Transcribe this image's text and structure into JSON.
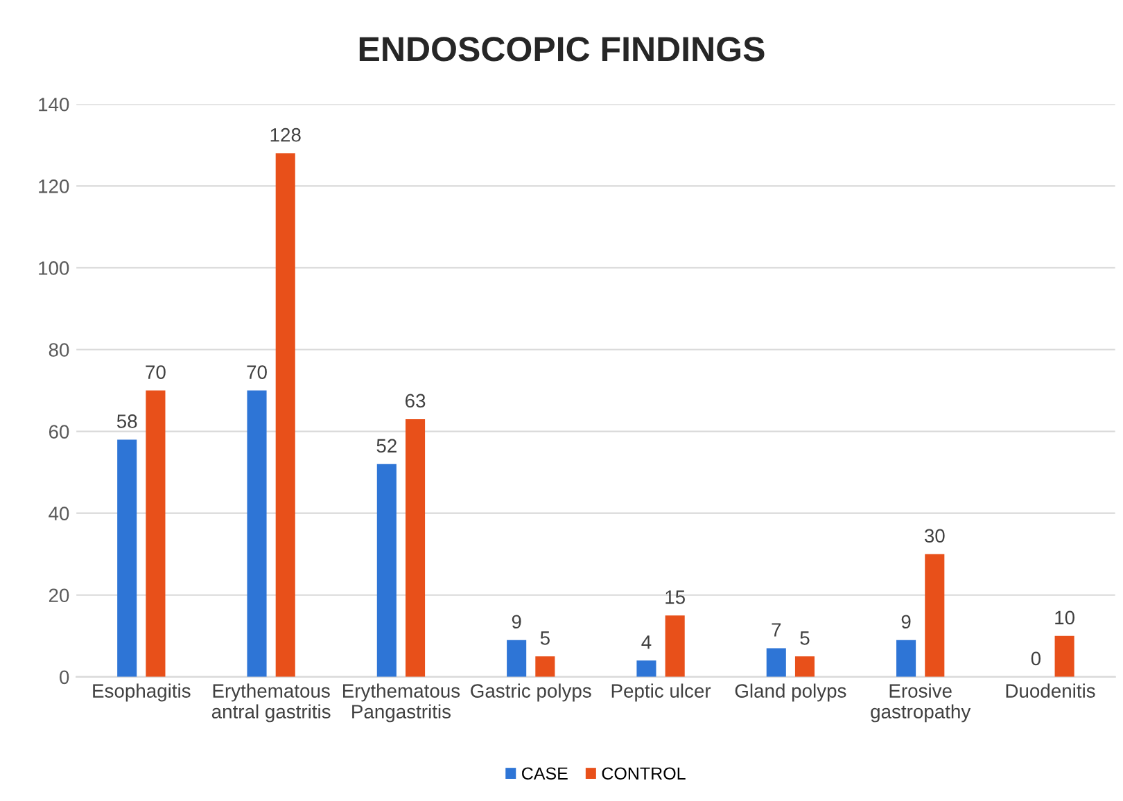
{
  "chart_data": {
    "type": "bar",
    "title": "ENDOSCOPIC FINDINGS",
    "categories": [
      "Esophagitis",
      "Erythematous\nantral gastritis",
      "Erythematous\nPangastritis",
      "Gastric polyps",
      "Peptic ulcer",
      "Gland polyps",
      "Erosive\ngastropathy",
      "Duodenitis"
    ],
    "series": [
      {
        "name": "CASE",
        "color": "#2e75d6",
        "values": [
          58,
          70,
          52,
          9,
          4,
          7,
          9,
          0
        ]
      },
      {
        "name": "CONTROL",
        "color": "#e8501a",
        "values": [
          70,
          128,
          63,
          5,
          15,
          5,
          30,
          10
        ]
      }
    ],
    "ylim": [
      0,
      140
    ],
    "yticks": [
      0,
      20,
      40,
      60,
      80,
      100,
      120,
      140
    ],
    "grid": "y",
    "legend": "bottom",
    "data_labels": true
  }
}
